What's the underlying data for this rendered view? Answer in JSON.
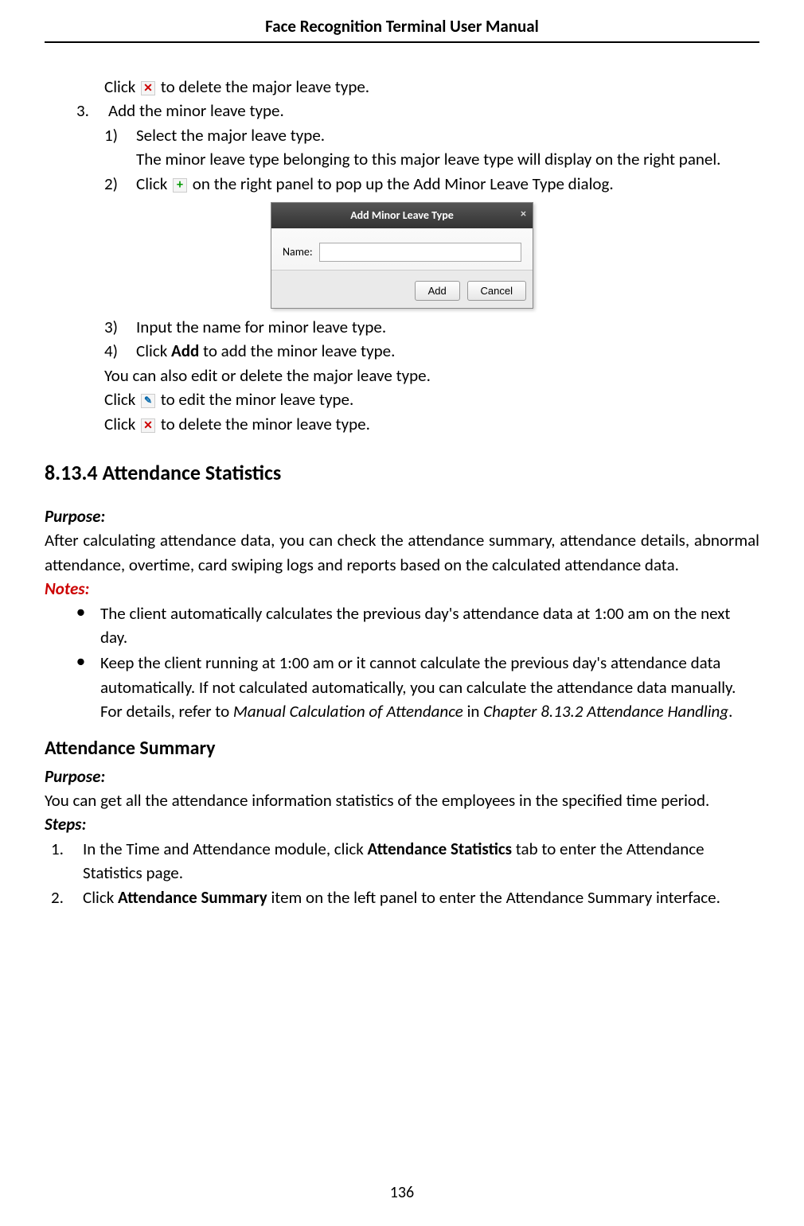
{
  "header": {
    "title": "Face Recognition Terminal  User Manual"
  },
  "page_number": "136",
  "section1": {
    "click_delete_major": "to delete the major leave type.",
    "click_prefix": "Click",
    "step3_num": "3.",
    "step3_text": "Add the minor leave type.",
    "sub1_num": "1)",
    "sub1_text": "Select the major leave type.",
    "sub1_detail": "The minor leave type belonging to this major leave type will display on the right panel.",
    "sub2_num": "2)",
    "sub2_text_before": "Click",
    "sub2_text_after": "on the right panel to pop up the Add Minor Leave Type dialog.",
    "sub3_num": "3)",
    "sub3_text": "Input the name for minor leave type.",
    "sub4_num": "4)",
    "sub4_text_before": "Click ",
    "sub4_bold": "Add",
    "sub4_text_after": " to add the minor leave type.",
    "also_edit": "You can also edit or delete the major leave type.",
    "click_edit_minor": "to edit the minor leave type.",
    "click_delete_minor": "to delete the minor leave type."
  },
  "dialog": {
    "title": "Add Minor Leave Type",
    "name_label": "Name:",
    "input_value": "",
    "add_btn": "Add",
    "cancel_btn": "Cancel",
    "close": "×"
  },
  "section2": {
    "heading_num": "8.13.4",
    "heading_text": "Attendance Statistics",
    "purpose_label": "Purpose:",
    "purpose_text": "After calculating attendance data, you can check the attendance summary, attendance details, abnormal attendance, overtime, card swiping logs and reports based on the calculated attendance data.",
    "notes_label": "Notes:",
    "note1": "The client automatically calculates the previous day's attendance data at 1:00 am on the next day.",
    "note2_a": "Keep the client running at 1:00 am or it cannot calculate the previous day's attendance data automatically. If not calculated automatically, you can calculate the attendance data manually. For details, refer to ",
    "note2_italic1": "Manual Calculation of Attendance",
    "note2_b": " in ",
    "note2_italic2": "Chapter 8.13.2 Attendance Handling",
    "note2_c": "."
  },
  "section3": {
    "heading": "Attendance Summary",
    "purpose_label": "Purpose:",
    "purpose_text": "You can get all the attendance information statistics of the employees in the specified time period.",
    "steps_label": "Steps:",
    "step1_num": "1.",
    "step1_a": "In the Time and Attendance module, click ",
    "step1_bold": "Attendance Statistics",
    "step1_b": " tab to enter the Attendance Statistics page.",
    "step2_num": "2.",
    "step2_a": "Click ",
    "step2_bold": "Attendance Summary",
    "step2_b": " item on the left panel to enter the Attendance Summary interface."
  },
  "icons": {
    "x": "✕",
    "plus": "+",
    "edit": "✎"
  }
}
